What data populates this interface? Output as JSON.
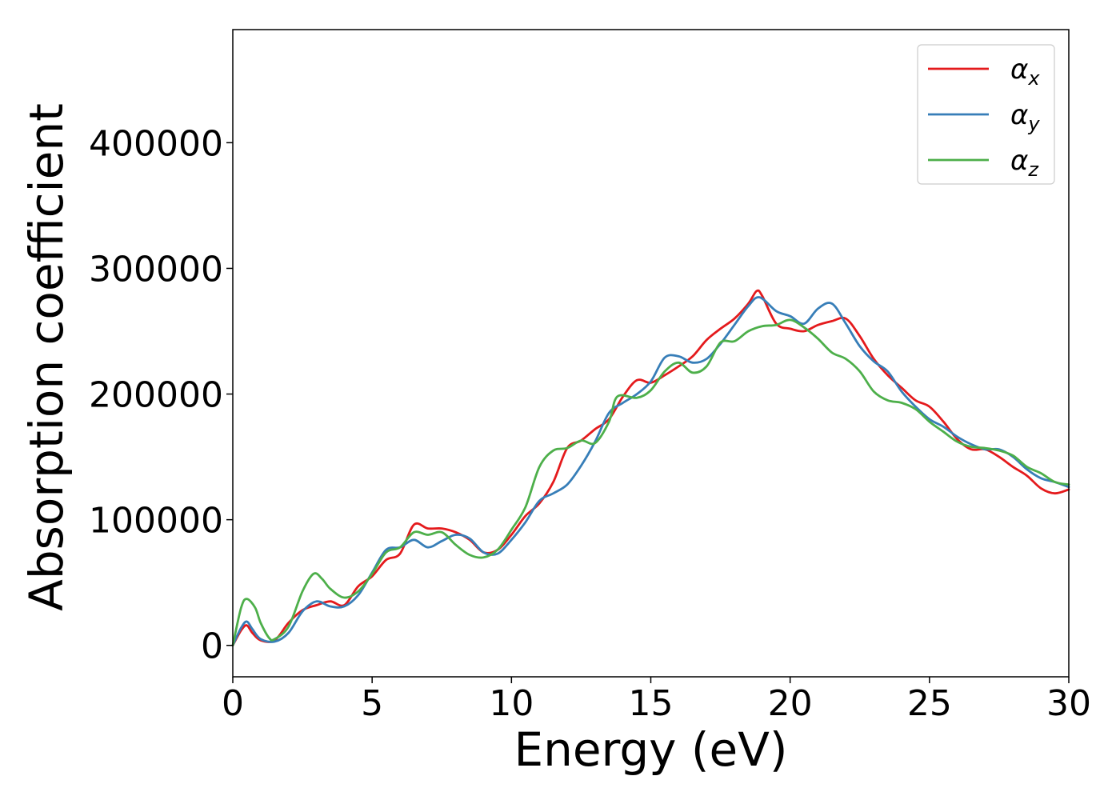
{
  "chart_data": {
    "type": "line",
    "xlabel": "Energy (eV)",
    "ylabel": "Absorption coefficient",
    "xlim": [
      0,
      30
    ],
    "ylim": [
      -25000,
      490000
    ],
    "x_ticks": [
      0,
      5,
      10,
      15,
      20,
      25,
      30
    ],
    "y_ticks": [
      0,
      100000,
      200000,
      300000,
      400000
    ],
    "grid": false,
    "legend_position": "top-right",
    "series": [
      {
        "name": "αx",
        "symbol": "α",
        "subscript": "x",
        "color": "#e41a1c",
        "points": [
          [
            0,
            0
          ],
          [
            0.3,
            12000
          ],
          [
            0.5,
            16000
          ],
          [
            0.7,
            10000
          ],
          [
            1.0,
            4000
          ],
          [
            1.5,
            4000
          ],
          [
            2.0,
            18000
          ],
          [
            2.5,
            28000
          ],
          [
            3.0,
            32000
          ],
          [
            3.5,
            35000
          ],
          [
            4.0,
            32000
          ],
          [
            4.5,
            47000
          ],
          [
            5.0,
            55000
          ],
          [
            5.5,
            68000
          ],
          [
            6.0,
            73000
          ],
          [
            6.5,
            96000
          ],
          [
            7.0,
            93000
          ],
          [
            7.5,
            93000
          ],
          [
            8.0,
            90000
          ],
          [
            8.5,
            84000
          ],
          [
            9.0,
            74000
          ],
          [
            9.5,
            76000
          ],
          [
            10.0,
            88000
          ],
          [
            10.5,
            103000
          ],
          [
            11.0,
            113000
          ],
          [
            11.5,
            130000
          ],
          [
            12.0,
            157000
          ],
          [
            12.5,
            163000
          ],
          [
            13.0,
            172000
          ],
          [
            13.5,
            180000
          ],
          [
            14.0,
            198000
          ],
          [
            14.5,
            211000
          ],
          [
            15.0,
            209000
          ],
          [
            15.5,
            215000
          ],
          [
            16.0,
            222000
          ],
          [
            16.5,
            230000
          ],
          [
            17.0,
            243000
          ],
          [
            17.5,
            252000
          ],
          [
            18.0,
            260000
          ],
          [
            18.5,
            272000
          ],
          [
            18.8,
            282000
          ],
          [
            19.0,
            278000
          ],
          [
            19.5,
            256000
          ],
          [
            20.0,
            252000
          ],
          [
            20.5,
            250000
          ],
          [
            21.0,
            255000
          ],
          [
            21.5,
            258000
          ],
          [
            22.0,
            260000
          ],
          [
            22.5,
            246000
          ],
          [
            23.0,
            228000
          ],
          [
            23.5,
            215000
          ],
          [
            24.0,
            205000
          ],
          [
            24.5,
            195000
          ],
          [
            25.0,
            190000
          ],
          [
            25.5,
            178000
          ],
          [
            26.0,
            164000
          ],
          [
            26.5,
            156000
          ],
          [
            27.0,
            156000
          ],
          [
            27.5,
            150000
          ],
          [
            28.0,
            142000
          ],
          [
            28.5,
            135000
          ],
          [
            29.0,
            125000
          ],
          [
            29.5,
            121000
          ],
          [
            30.0,
            124000
          ]
        ]
      },
      {
        "name": "αy",
        "symbol": "α",
        "subscript": "y",
        "color": "#377eb8",
        "points": [
          [
            0,
            0
          ],
          [
            0.3,
            14000
          ],
          [
            0.5,
            19000
          ],
          [
            0.7,
            13000
          ],
          [
            1.0,
            5000
          ],
          [
            1.5,
            3000
          ],
          [
            2.0,
            10000
          ],
          [
            2.5,
            27000
          ],
          [
            3.0,
            35000
          ],
          [
            3.5,
            31000
          ],
          [
            4.0,
            31000
          ],
          [
            4.5,
            40000
          ],
          [
            5.0,
            58000
          ],
          [
            5.5,
            76000
          ],
          [
            6.0,
            78000
          ],
          [
            6.5,
            84000
          ],
          [
            7.0,
            78000
          ],
          [
            7.5,
            83000
          ],
          [
            8.0,
            88000
          ],
          [
            8.5,
            85000
          ],
          [
            9.0,
            74000
          ],
          [
            9.5,
            73000
          ],
          [
            10.0,
            84000
          ],
          [
            10.5,
            98000
          ],
          [
            11.0,
            115000
          ],
          [
            11.5,
            121000
          ],
          [
            12.0,
            128000
          ],
          [
            12.5,
            143000
          ],
          [
            13.0,
            162000
          ],
          [
            13.5,
            185000
          ],
          [
            14.0,
            193000
          ],
          [
            14.5,
            200000
          ],
          [
            15.0,
            210000
          ],
          [
            15.5,
            229000
          ],
          [
            16.0,
            230000
          ],
          [
            16.5,
            225000
          ],
          [
            17.0,
            228000
          ],
          [
            17.5,
            240000
          ],
          [
            18.0,
            255000
          ],
          [
            18.5,
            270000
          ],
          [
            18.9,
            277000
          ],
          [
            19.5,
            266000
          ],
          [
            20.0,
            262000
          ],
          [
            20.5,
            256000
          ],
          [
            21.0,
            268000
          ],
          [
            21.5,
            272000
          ],
          [
            22.0,
            256000
          ],
          [
            22.5,
            238000
          ],
          [
            23.0,
            226000
          ],
          [
            23.5,
            218000
          ],
          [
            24.0,
            202000
          ],
          [
            24.5,
            190000
          ],
          [
            25.0,
            180000
          ],
          [
            25.5,
            174000
          ],
          [
            26.0,
            166000
          ],
          [
            26.5,
            160000
          ],
          [
            27.0,
            156000
          ],
          [
            27.5,
            156000
          ],
          [
            28.0,
            150000
          ],
          [
            28.5,
            140000
          ],
          [
            29.0,
            133000
          ],
          [
            29.5,
            130000
          ],
          [
            30.0,
            126000
          ]
        ]
      },
      {
        "name": "αz",
        "symbol": "α",
        "subscript": "z",
        "color": "#4daf4a",
        "points": [
          [
            0,
            0
          ],
          [
            0.3,
            30000
          ],
          [
            0.5,
            37000
          ],
          [
            0.8,
            30000
          ],
          [
            1.0,
            18000
          ],
          [
            1.3,
            6000
          ],
          [
            1.5,
            5000
          ],
          [
            2.0,
            15000
          ],
          [
            2.5,
            43000
          ],
          [
            2.9,
            57000
          ],
          [
            3.2,
            53000
          ],
          [
            3.5,
            45000
          ],
          [
            4.0,
            38000
          ],
          [
            4.5,
            43000
          ],
          [
            5.0,
            57000
          ],
          [
            5.5,
            74000
          ],
          [
            6.0,
            78000
          ],
          [
            6.5,
            90000
          ],
          [
            7.0,
            88000
          ],
          [
            7.5,
            90000
          ],
          [
            8.0,
            80000
          ],
          [
            8.5,
            72000
          ],
          [
            9.0,
            70000
          ],
          [
            9.5,
            76000
          ],
          [
            10.0,
            92000
          ],
          [
            10.5,
            110000
          ],
          [
            11.0,
            142000
          ],
          [
            11.5,
            155000
          ],
          [
            12.0,
            157000
          ],
          [
            12.5,
            163000
          ],
          [
            13.0,
            161000
          ],
          [
            13.5,
            178000
          ],
          [
            13.8,
            198000
          ],
          [
            14.5,
            197000
          ],
          [
            15.0,
            203000
          ],
          [
            15.5,
            218000
          ],
          [
            16.0,
            225000
          ],
          [
            16.5,
            217000
          ],
          [
            17.0,
            222000
          ],
          [
            17.5,
            241000
          ],
          [
            18.0,
            242000
          ],
          [
            18.5,
            250000
          ],
          [
            19.0,
            254000
          ],
          [
            19.5,
            255000
          ],
          [
            20.0,
            259000
          ],
          [
            20.5,
            253000
          ],
          [
            21.0,
            244000
          ],
          [
            21.5,
            233000
          ],
          [
            22.0,
            228000
          ],
          [
            22.5,
            218000
          ],
          [
            23.0,
            202000
          ],
          [
            23.5,
            195000
          ],
          [
            24.0,
            193000
          ],
          [
            24.5,
            188000
          ],
          [
            25.0,
            178000
          ],
          [
            25.5,
            170000
          ],
          [
            26.0,
            162000
          ],
          [
            26.5,
            158000
          ],
          [
            27.0,
            157000
          ],
          [
            27.5,
            155000
          ],
          [
            28.0,
            151000
          ],
          [
            28.5,
            142000
          ],
          [
            29.0,
            137000
          ],
          [
            29.5,
            130000
          ],
          [
            30.0,
            128000
          ]
        ]
      }
    ]
  }
}
